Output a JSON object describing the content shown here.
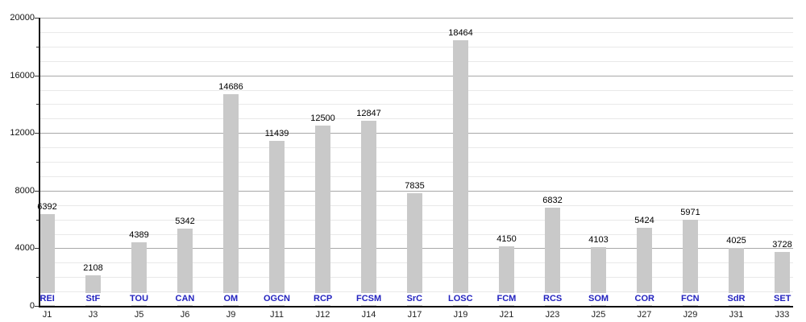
{
  "chart_data": {
    "type": "bar",
    "title": "",
    "xlabel": "",
    "ylabel": "",
    "categories": [
      "J1",
      "J3",
      "J5",
      "J6",
      "J9",
      "J11",
      "J12",
      "J14",
      "J17",
      "J19",
      "J21",
      "J23",
      "J25",
      "J27",
      "J29",
      "J31",
      "J33"
    ],
    "bar_labels": [
      "REI",
      "StF",
      "TOU",
      "CAN",
      "OM",
      "OGCN",
      "RCP",
      "FCSM",
      "SrC",
      "LOSC",
      "FCM",
      "RCS",
      "SOM",
      "COR",
      "FCN",
      "SdR",
      "SET"
    ],
    "values": [
      6392,
      2108,
      4389,
      5342,
      14686,
      11439,
      12500,
      12847,
      7835,
      18464,
      4150,
      6832,
      4103,
      5424,
      5971,
      4025,
      3728
    ],
    "value_labels": [
      "6392",
      "2108",
      "4389",
      "5342",
      "14686",
      "11439",
      "12500",
      "12847",
      "7835",
      "18464",
      "4150",
      "6832",
      "4103",
      "5424",
      "5971",
      "4025",
      "3728"
    ],
    "y_axis": {
      "min": 0,
      "max": 20000,
      "major_step": 4000,
      "minor_step": 1000,
      "tick_step": 2000,
      "tick_labels": [
        "0",
        "4000",
        "8000",
        "12000",
        "16000",
        "20000"
      ]
    },
    "grid": true,
    "legend": false,
    "colors": {
      "bar_fill": "#c9c9c9",
      "value_label": "#000000",
      "club_label": "#2222bf",
      "club_label_bg": "#ffffff",
      "axis": "#1a1a1a",
      "major_grid": "#a8a8a8",
      "minor_grid": "#e9e9e9",
      "category_label": "#222222"
    }
  }
}
